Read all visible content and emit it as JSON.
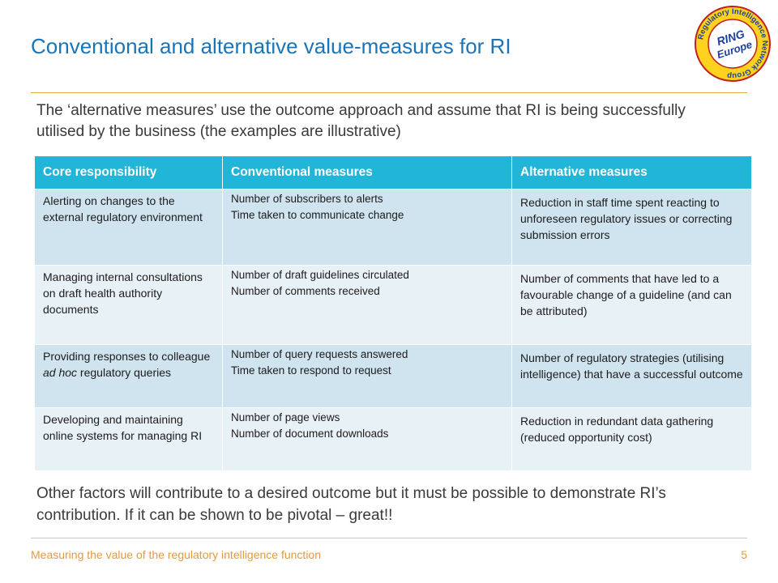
{
  "slide": {
    "title": "Conventional and alternative value-measures for RI",
    "intro": "The ‘alternative measures’ use the outcome approach and assume that RI is being successfully utilised by the business (the examples are illustrative)",
    "outro": "Other factors will contribute to a desired outcome but it must be possible to demonstrate RI’s contribution. If it can be shown to be pivotal – great!!",
    "footer": "Measuring the value of the regulatory intelligence function",
    "page_number": "5"
  },
  "logo": {
    "ring_text": "Regulatory Intelligence Network Group",
    "line1": "RING",
    "line2": "Europe"
  },
  "table": {
    "headers": [
      "Core responsibility",
      "Conventional measures",
      "Alternative measures"
    ],
    "rows": [
      {
        "core": "Alerting on changes to the external regulatory environment",
        "core_em": "",
        "core_after": "",
        "conv": [
          "Number of subscribers to alerts",
          "Time taken to communicate change"
        ],
        "alt": "Reduction in staff time spent reacting to unforeseen regulatory issues or correcting submission errors"
      },
      {
        "core": "Managing internal consultations on draft health authority documents",
        "core_em": "",
        "core_after": "",
        "conv": [
          "Number of draft guidelines circulated",
          "Number of comments received"
        ],
        "alt": "Number of comments that have led to a favourable change of a guideline (and can be attributed)"
      },
      {
        "core": "Providing responses to colleague ",
        "core_em": "ad hoc",
        "core_after": " regulatory queries",
        "conv": [
          "Number of query requests answered",
          "Time taken to respond to request"
        ],
        "alt": "Number of regulatory strategies (utilising intelligence) that have a successful outcome"
      },
      {
        "core": "Developing and maintaining online systems for managing RI",
        "core_em": "",
        "core_after": "",
        "conv": [
          "Number of page views",
          "Number of document downloads"
        ],
        "alt": "Reduction in redundant data gathering (reduced opportunity cost)"
      }
    ]
  },
  "colors": {
    "title": "#1a74b8",
    "header_bg": "#21b5d8",
    "row_dark": "#cfe4ee",
    "row_light": "#e8f1f6",
    "accent_rule": "#e8a24a",
    "footer_text": "#e39a3e"
  }
}
